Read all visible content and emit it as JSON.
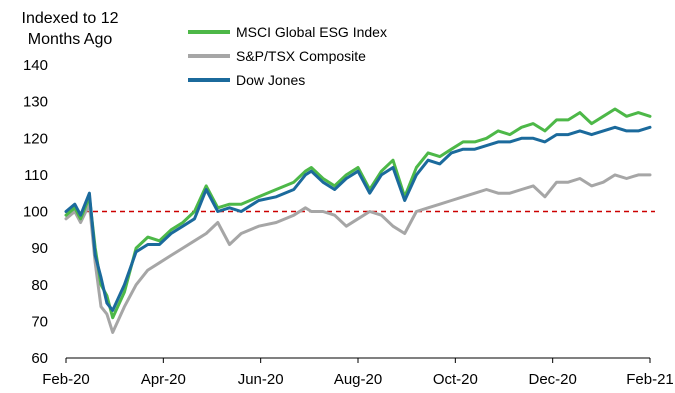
{
  "chart_data": {
    "type": "line",
    "ylabel_line1": "Indexed to 12",
    "ylabel_line2": "Months Ago",
    "ylim": [
      60,
      140
    ],
    "yticks": [
      60,
      70,
      80,
      90,
      100,
      110,
      120,
      130,
      140
    ],
    "xticks": [
      "Feb-20",
      "Apr-20",
      "Jun-20",
      "Aug-20",
      "Oct-20",
      "Dec-20",
      "Feb-21"
    ],
    "reference_line": {
      "y": 100,
      "style": "dashed",
      "color": "#cc0000"
    },
    "grid": false,
    "legend_position": "top-center",
    "x": [
      0,
      1.5,
      2.5,
      4,
      5,
      6,
      7,
      8,
      10,
      12,
      14,
      16,
      18,
      20,
      22,
      24,
      26,
      28,
      30,
      33,
      36,
      39,
      41,
      42,
      44,
      46,
      48,
      50,
      52,
      54,
      56,
      58,
      60,
      62,
      64,
      66,
      68,
      70,
      72,
      74,
      76,
      78,
      80,
      82,
      84,
      86,
      88,
      90,
      92,
      94,
      96,
      98,
      100
    ],
    "series": [
      {
        "name": "MSCI Global ESG Index",
        "color": "#4db848",
        "values": [
          99,
          101,
          98,
          104,
          90,
          80,
          77,
          71,
          78,
          90,
          93,
          92,
          95,
          97,
          100,
          107,
          101,
          102,
          102,
          104,
          106,
          108,
          111,
          112,
          109,
          107,
          110,
          112,
          106,
          111,
          114,
          104,
          112,
          116,
          115,
          117,
          119,
          119,
          120,
          122,
          121,
          123,
          124,
          122,
          125,
          125,
          127,
          124,
          126,
          128,
          126,
          127,
          126
        ]
      },
      {
        "name": "S&P/TSX Composite",
        "color": "#a6a6a6",
        "values": [
          98,
          100,
          97,
          102,
          86,
          74,
          72,
          67,
          74,
          80,
          84,
          86,
          88,
          90,
          92,
          94,
          97,
          91,
          94,
          96,
          97,
          99,
          101,
          100,
          100,
          99,
          96,
          98,
          100,
          99,
          96,
          94,
          100,
          101,
          102,
          103,
          104,
          105,
          106,
          105,
          105,
          106,
          107,
          104,
          108,
          108,
          109,
          107,
          108,
          110,
          109,
          110,
          110
        ]
      },
      {
        "name": "Dow Jones",
        "color": "#1b6a9c",
        "values": [
          100,
          102,
          99,
          105,
          88,
          82,
          75,
          73,
          80,
          89,
          91,
          91,
          94,
          96,
          98,
          106,
          100,
          101,
          100,
          103,
          104,
          106,
          110,
          111,
          108,
          106,
          109,
          111,
          105,
          110,
          112,
          103,
          110,
          114,
          113,
          116,
          117,
          117,
          118,
          119,
          119,
          120,
          120,
          119,
          121,
          121,
          122,
          121,
          122,
          123,
          122,
          122,
          123
        ]
      }
    ]
  }
}
